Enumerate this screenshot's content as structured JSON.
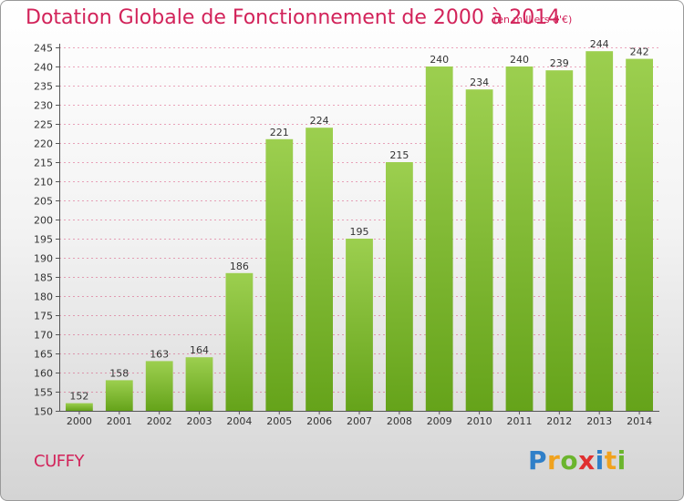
{
  "chart_data": {
    "type": "bar",
    "title": "Dotation Globale de Fonctionnement de 2000 à 2014",
    "subtitle": "(en milliers d'€)",
    "categories": [
      "2000",
      "2001",
      "2002",
      "2003",
      "2004",
      "2005",
      "2006",
      "2007",
      "2008",
      "2009",
      "2010",
      "2011",
      "2012",
      "2013",
      "2014"
    ],
    "values": [
      152,
      158,
      163,
      164,
      186,
      221,
      224,
      195,
      215,
      240,
      234,
      240,
      239,
      244,
      242
    ],
    "ylim": [
      150,
      245
    ],
    "yticks": [
      150,
      155,
      160,
      165,
      170,
      175,
      180,
      185,
      190,
      195,
      200,
      205,
      210,
      215,
      220,
      225,
      230,
      235,
      240,
      245
    ],
    "xlabel": "",
    "ylabel": "",
    "grid": true,
    "bar_color_top": "#9ccf4f",
    "bar_color_bottom": "#65a31a",
    "grid_color": "#d2235a"
  },
  "commune": "CUFFY",
  "logo": {
    "letters": [
      "P",
      "r",
      "o",
      "x",
      "i",
      "t",
      "i"
    ],
    "colors": [
      "#2f7fc8",
      "#f0a21e",
      "#6bb52d",
      "#e03030",
      "#2f7fc8",
      "#f0a21e",
      "#6bb52d"
    ]
  }
}
